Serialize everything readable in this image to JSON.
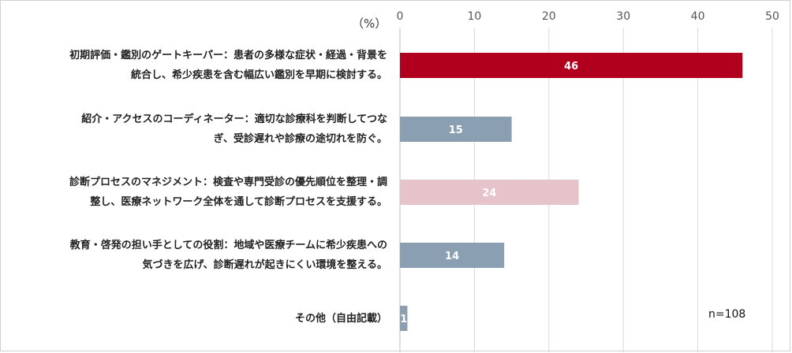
{
  "chart_data": {
    "type": "bar",
    "orientation": "horizontal",
    "categories": [
      "初期評価・鑑別のゲートキーパー：患者の多様な症状・経過・背景を\n統合し、希少疾患を含む幅広い鑑別を早期に検討する。",
      "紹介・アクセスのコーディネーター：適切な診療科を判断してつな\nぎ、受診遅れや診療の途切れを防ぐ。",
      "診断プロセスのマネジメント：検査や専門受診の優先順位を整理・調\n整し、医療ネットワーク全体を通して診断プロセスを支援する。",
      "教育・啓発の担い手としての役割：地域や医療チームに希少疾患への\n気づきを広げ、診断遅れが起きにくい環境を整える。",
      "その他（自由記載）"
    ],
    "values": [
      46,
      15,
      24,
      14,
      1
    ],
    "bar_colors": [
      "#b0001e",
      "#8aa0b2",
      "#e6c3ca",
      "#8aa0b2",
      "#8aa0b2"
    ],
    "label_color": "#ffffff",
    "xlim": [
      0,
      50
    ],
    "x_ticks": [
      "0",
      "10",
      "20",
      "30",
      "40",
      "50"
    ],
    "x_axis_position": "top",
    "unit_label": "（%）",
    "annotation": "n=108",
    "grid": true,
    "grid_color": "#d9d9d9"
  }
}
